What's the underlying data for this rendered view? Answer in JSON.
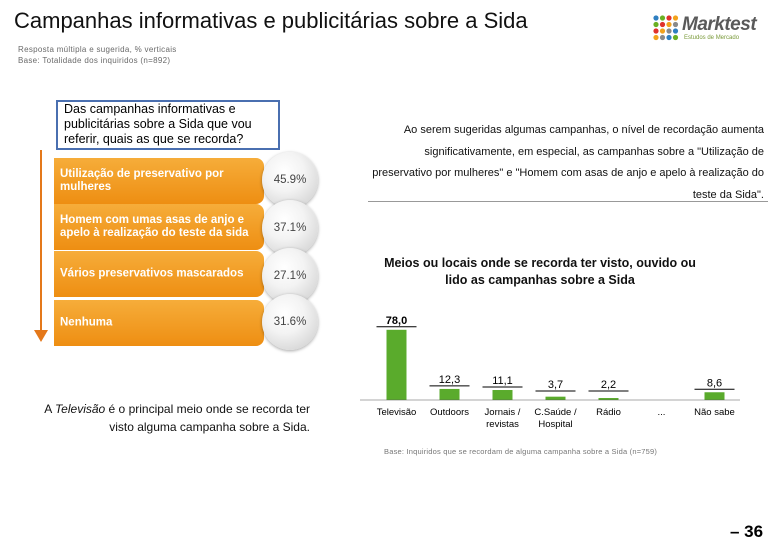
{
  "header": {
    "title": "Campanhas informativas e publicitárias sobre a Sida",
    "meta_line1": "Resposta múltipla e sugerida, % verticais",
    "meta_line2": "Base: Totalidade dos inquiridos (n=892)",
    "logo_text": "Marktest",
    "logo_sub": "Estudos de Mercado"
  },
  "question": "Das campanhas informativas e publicitárias sobre a Sida que vou referir, quais as que se recorda?",
  "campaigns": [
    {
      "label": "Utilização de preservativo por mulheres",
      "percent": "45.9%"
    },
    {
      "label": "Homem com umas asas de anjo e apelo à realização do teste da sida",
      "percent": "37.1%"
    },
    {
      "label": "Vários preservativos mascarados",
      "percent": "27.1%"
    },
    {
      "label": "Nenhuma",
      "percent": "31.6%"
    }
  ],
  "tv_note": {
    "pre": "A ",
    "em": "Televisão",
    "post": " é o principal meio onde se recorda ter visto alguma campanha sobre a Sida."
  },
  "summary": "Ao serem sugeridas algumas campanhas, o nível de recordação aumenta significativamente, em especial, as campanhas sobre a \"Utilização de preservativo por mulheres\" e \"Homem com asas de anjo e apelo à realização do teste da Sida\".",
  "chart_data": {
    "type": "bar",
    "title": "Meios ou locais onde se recorda ter visto, ouvido ou lido as campanhas sobre a Sida",
    "categories": [
      "Televisão",
      "Outdoors",
      "Jornais / revistas",
      "C.Saúde / Hospital",
      "Rádio",
      "...",
      "Não sabe"
    ],
    "values": [
      78.0,
      12.3,
      11.1,
      3.7,
      2.2,
      null,
      8.6
    ],
    "value_labels": [
      "78,0",
      "12,3",
      "11,1",
      "3,7",
      "2,2",
      "",
      "8,6"
    ],
    "ylim": [
      0,
      80
    ],
    "bar_color": "#5aab2c",
    "base_note": "Base: Inquiridos que se recordam de alguma campanha sobre a Sida (n=759)"
  },
  "page_number": "– 36",
  "colors": {
    "accent_orange": "#f39c1e",
    "question_border": "#4a6fb0",
    "bar_green": "#5aab2c"
  }
}
